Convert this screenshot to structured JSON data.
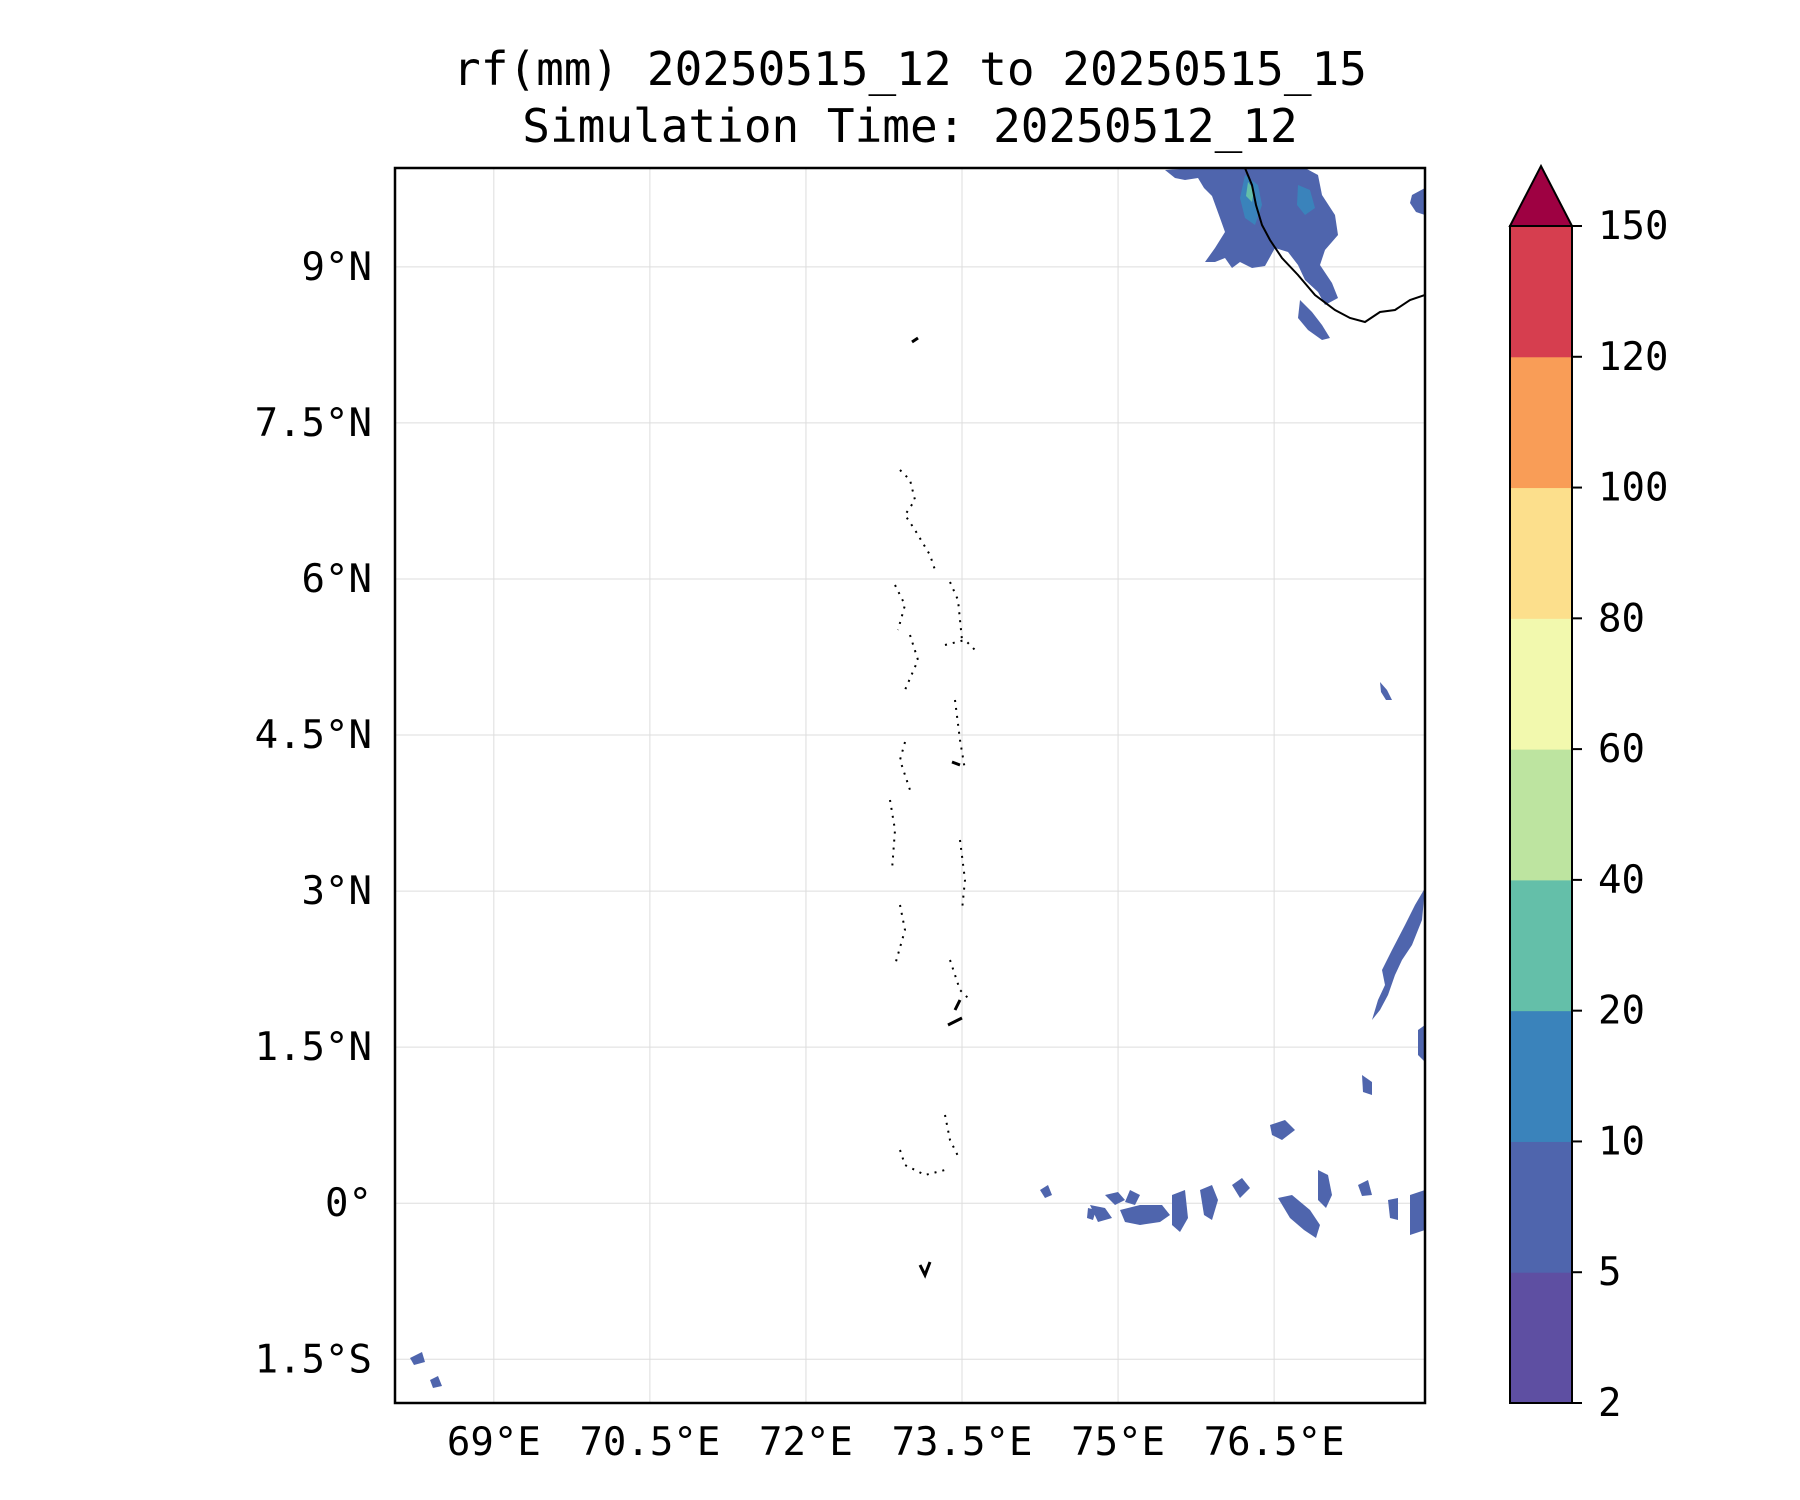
{
  "title": {
    "line1": "rf(mm) 20250515_12 to 20250515_15",
    "line2": "Simulation Time: 20250512_12"
  },
  "map": {
    "lon_ticks": [
      "69°E",
      "70.5°E",
      "72°E",
      "73.5°E",
      "75°E",
      "76.5°E"
    ],
    "lon_values": [
      69,
      70.5,
      72,
      73.5,
      75,
      76.5
    ],
    "lat_ticks": [
      "9°N",
      "7.5°N",
      "6°N",
      "4.5°N",
      "3°N",
      "1.5°N",
      "0°",
      "1.5°S"
    ],
    "lat_values": [
      9,
      7.5,
      6,
      4.5,
      3,
      1.5,
      0,
      -1.5
    ],
    "extent": {
      "lon_min": 68.05,
      "lon_max": 77.95,
      "lat_min": -1.92,
      "lat_max": 9.95
    },
    "gridlines": true,
    "coastline_color": "#000000",
    "gridline_color": "#dddddd"
  },
  "colorbar": {
    "levels": [
      2,
      5,
      10,
      20,
      40,
      60,
      80,
      100,
      120,
      150
    ],
    "labels": [
      "2",
      "5",
      "10",
      "20",
      "40",
      "60",
      "80",
      "100",
      "120",
      "150"
    ],
    "colors": [
      "#5e4fa2",
      "#4f65ad",
      "#3a83bb",
      "#64bfa9",
      "#bde4a0",
      "#f2f9ae",
      "#fcdf8c",
      "#f99d57",
      "#d63e4f"
    ],
    "extend_color": "#9e0142",
    "extend": "max",
    "orientation": "vertical",
    "placement": "right"
  }
}
